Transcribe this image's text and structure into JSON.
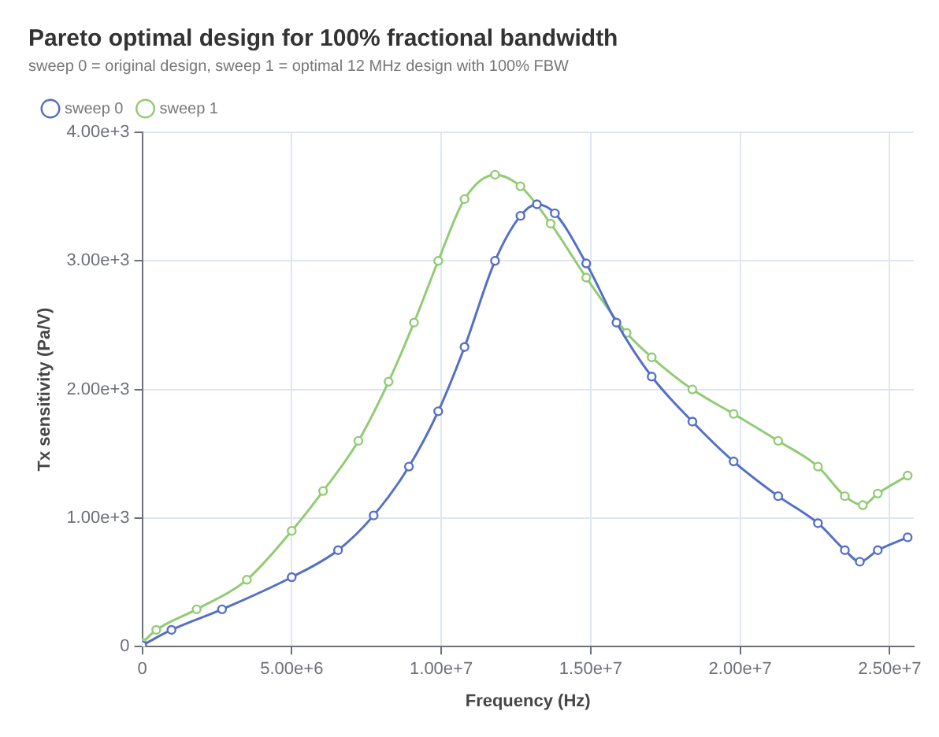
{
  "chart_data": {
    "type": "line",
    "title": "Pareto optimal design for 100% fractional bandwidth",
    "subtitle": "sweep 0 = original design, sweep 1 = optimal 12 MHz design with 100% FBW",
    "xlabel": "Frequency (Hz)",
    "ylabel": "Tx sensitivity (Pa/V)",
    "xlim": [
      0,
      25800000
    ],
    "xticks": [
      0,
      {
        "value": 5000000,
        "label": "5.00e+6"
      },
      {
        "value": 10000000,
        "label": "1.00e+7"
      },
      {
        "value": 15000000,
        "label": "1.50e+7"
      },
      {
        "value": 20000000,
        "label": "2.00e+7"
      },
      {
        "value": 25000000,
        "label": "2.50e+7"
      }
    ],
    "ylim": [
      0,
      4000
    ],
    "yticks": [
      0,
      {
        "value": 1000,
        "label": "1.00e+3"
      },
      {
        "value": 2000,
        "label": "2.00e+3"
      },
      {
        "value": 3000,
        "label": "3.00e+3"
      },
      {
        "value": 4000,
        "label": "4.00e+3"
      }
    ],
    "grid": true,
    "legend": "top left",
    "marker": "circle",
    "line_style": "solid",
    "series": [
      {
        "name": "sweep 0",
        "color": "#5470c6",
        "x": [
          0,
          980000,
          2670000,
          5000000,
          6550000,
          7740000,
          8920000,
          9900000,
          10780000,
          11800000,
          12650000,
          13200000,
          13800000,
          14850000,
          15860000,
          17040000,
          18400000,
          19780000,
          21270000,
          22600000,
          23500000,
          24000000,
          24600000,
          25600000
        ],
        "values": [
          10,
          130,
          290,
          540,
          750,
          1020,
          1400,
          1830,
          2330,
          3000,
          3350,
          3440,
          3370,
          2980,
          2520,
          2100,
          1750,
          1440,
          1170,
          960,
          750,
          660,
          750,
          850
        ]
      },
      {
        "name": "sweep 1",
        "color": "#91cc75",
        "x": [
          0,
          470000,
          1820000,
          3500000,
          5000000,
          6050000,
          7230000,
          8240000,
          9090000,
          9900000,
          10780000,
          11800000,
          12650000,
          13660000,
          14850000,
          16200000,
          17040000,
          18400000,
          19780000,
          21270000,
          22600000,
          23500000,
          24100000,
          24600000,
          25600000
        ],
        "values": [
          30,
          130,
          290,
          520,
          900,
          1210,
          1600,
          2060,
          2520,
          3000,
          3480,
          3670,
          3580,
          3290,
          2870,
          2440,
          2250,
          2000,
          1810,
          1600,
          1400,
          1170,
          1100,
          1190,
          1330
        ]
      }
    ]
  }
}
